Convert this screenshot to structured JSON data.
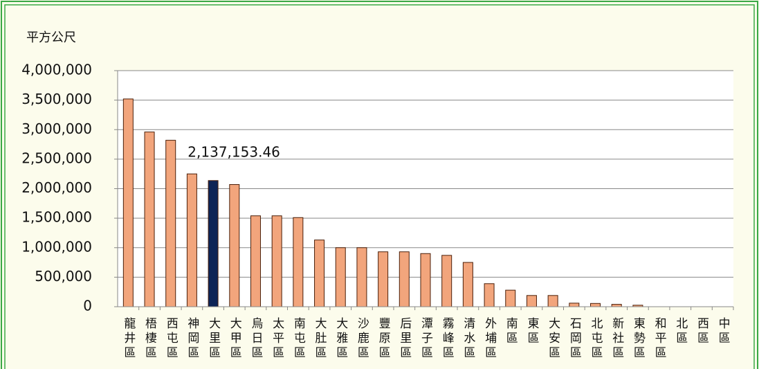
{
  "chart_data": {
    "type": "bar",
    "y_label": "平方公尺",
    "categories": [
      "龍井區",
      "梧棲區",
      "西屯區",
      "神岡區",
      "大里區",
      "大甲區",
      "烏日區",
      "太平區",
      "南屯區",
      "大肚區",
      "大雅區",
      "沙鹿區",
      "豐原區",
      "后里區",
      "潭子區",
      "霧峰區",
      "清水區",
      "外埔區",
      "南區",
      "東區",
      "大安區",
      "石岡區",
      "北屯區",
      "新社區",
      "東勢區",
      "和平區",
      "北區",
      "西區",
      "中區"
    ],
    "values": [
      3520000,
      2960000,
      2820000,
      2250000,
      2137153.46,
      2070000,
      1540000,
      1540000,
      1510000,
      1130000,
      1000000,
      1000000,
      930000,
      930000,
      900000,
      870000,
      750000,
      390000,
      280000,
      190000,
      190000,
      60000,
      55000,
      40000,
      25000,
      0,
      0,
      0,
      0
    ],
    "value_labels": [
      null,
      null,
      null,
      null,
      "2,137,153.46",
      null,
      null,
      null,
      null,
      null,
      null,
      null,
      null,
      null,
      null,
      null,
      null,
      null,
      null,
      null,
      null,
      null,
      null,
      null,
      null,
      null,
      null,
      null,
      null
    ],
    "colors": [
      "#f2a57c",
      "#f2a57c",
      "#f2a57c",
      "#f2a57c",
      "#0d2456",
      "#f2a57c",
      "#f2a57c",
      "#f2a57c",
      "#f2a57c",
      "#f2a57c",
      "#f2a57c",
      "#f2a57c",
      "#f2a57c",
      "#f2a57c",
      "#f2a57c",
      "#f2a57c",
      "#f2a57c",
      "#f2a57c",
      "#f2a57c",
      "#f2a57c",
      "#f2a57c",
      "#f2a57c",
      "#f2a57c",
      "#f2a57c",
      "#f2a57c",
      "#f2a57c",
      "#f2a57c",
      "#f2a57c",
      "#f2a57c"
    ],
    "ylim": [
      0,
      4000000
    ],
    "yticks": [
      0,
      {
        "value": 500000,
        "label": "500,000"
      },
      {
        "value": 1000000,
        "label": "1,000,000"
      },
      {
        "value": 1500000,
        "label": "1,500,000"
      },
      {
        "value": 2000000,
        "label": "2,000,000"
      },
      {
        "value": 2500000,
        "label": "2,500,000"
      },
      {
        "value": 3000000,
        "label": "3,000,000"
      },
      {
        "value": 3500000,
        "label": "3,500,000"
      },
      {
        "value": 4000000,
        "label": "4,000,000"
      }
    ],
    "grid": true
  }
}
